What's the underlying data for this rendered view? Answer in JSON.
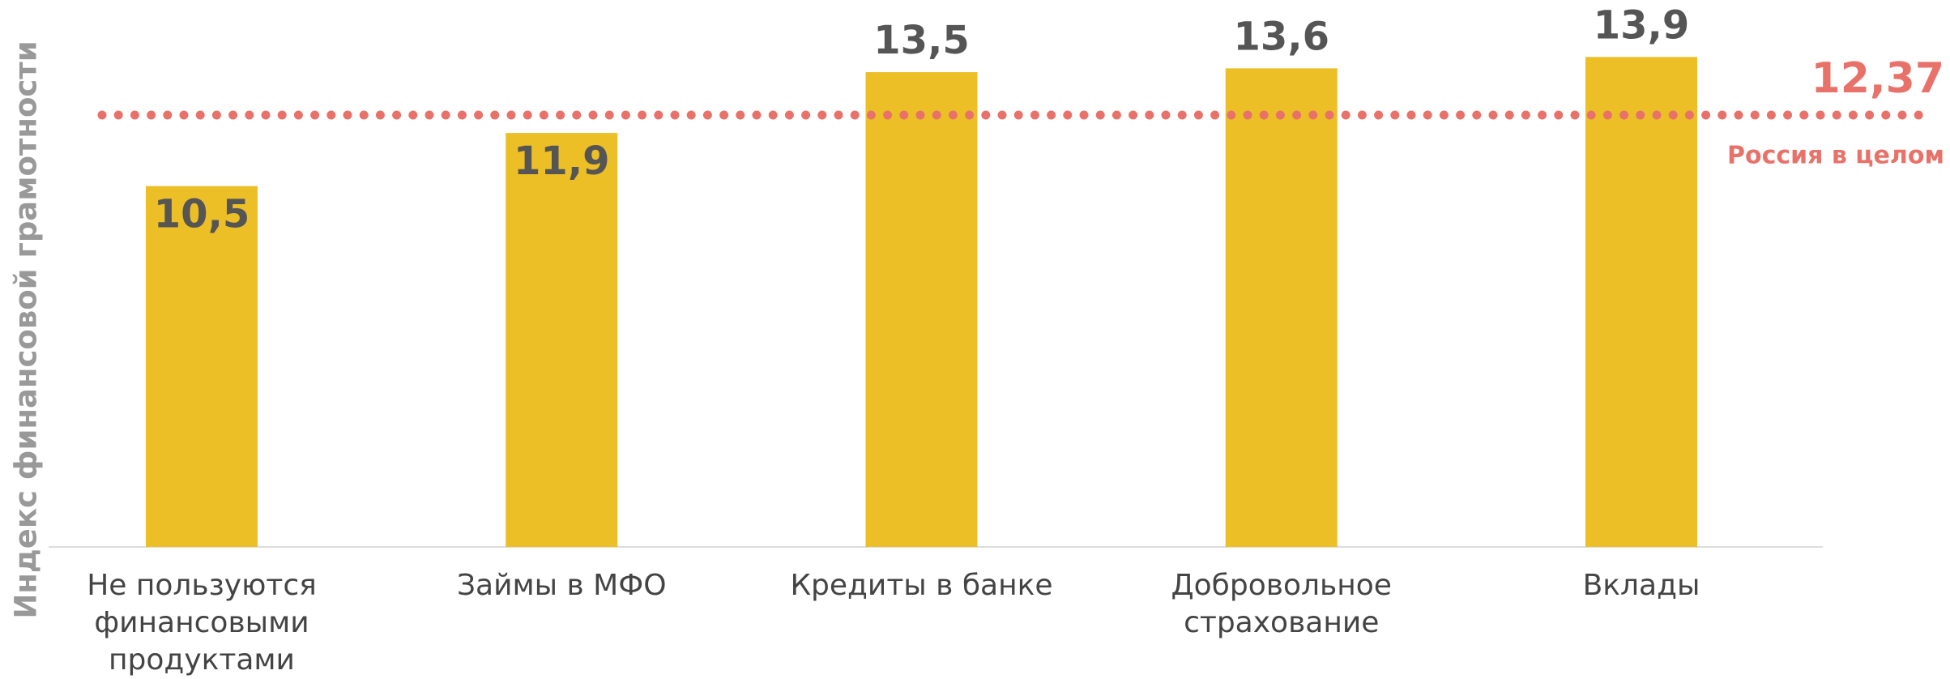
{
  "chart_data": {
    "type": "bar",
    "y_label": "Индекс финансовой грамотности",
    "categories": [
      "Не пользуются финансовыми продуктами",
      "Займы в МФО",
      "Кредиты в банке",
      "Добровольное страхование",
      "Вклады"
    ],
    "values": [
      10.5,
      11.9,
      13.5,
      13.6,
      13.9
    ],
    "value_labels": [
      "10,5",
      "11,9",
      "13,5",
      "13,6",
      "13,9"
    ],
    "color": "#ecbf26",
    "ylim": [
      1,
      15.4
    ],
    "reference": {
      "value": 12.37,
      "value_label": "12,37",
      "label": "Россия в целом",
      "color": "#e8726a"
    }
  }
}
